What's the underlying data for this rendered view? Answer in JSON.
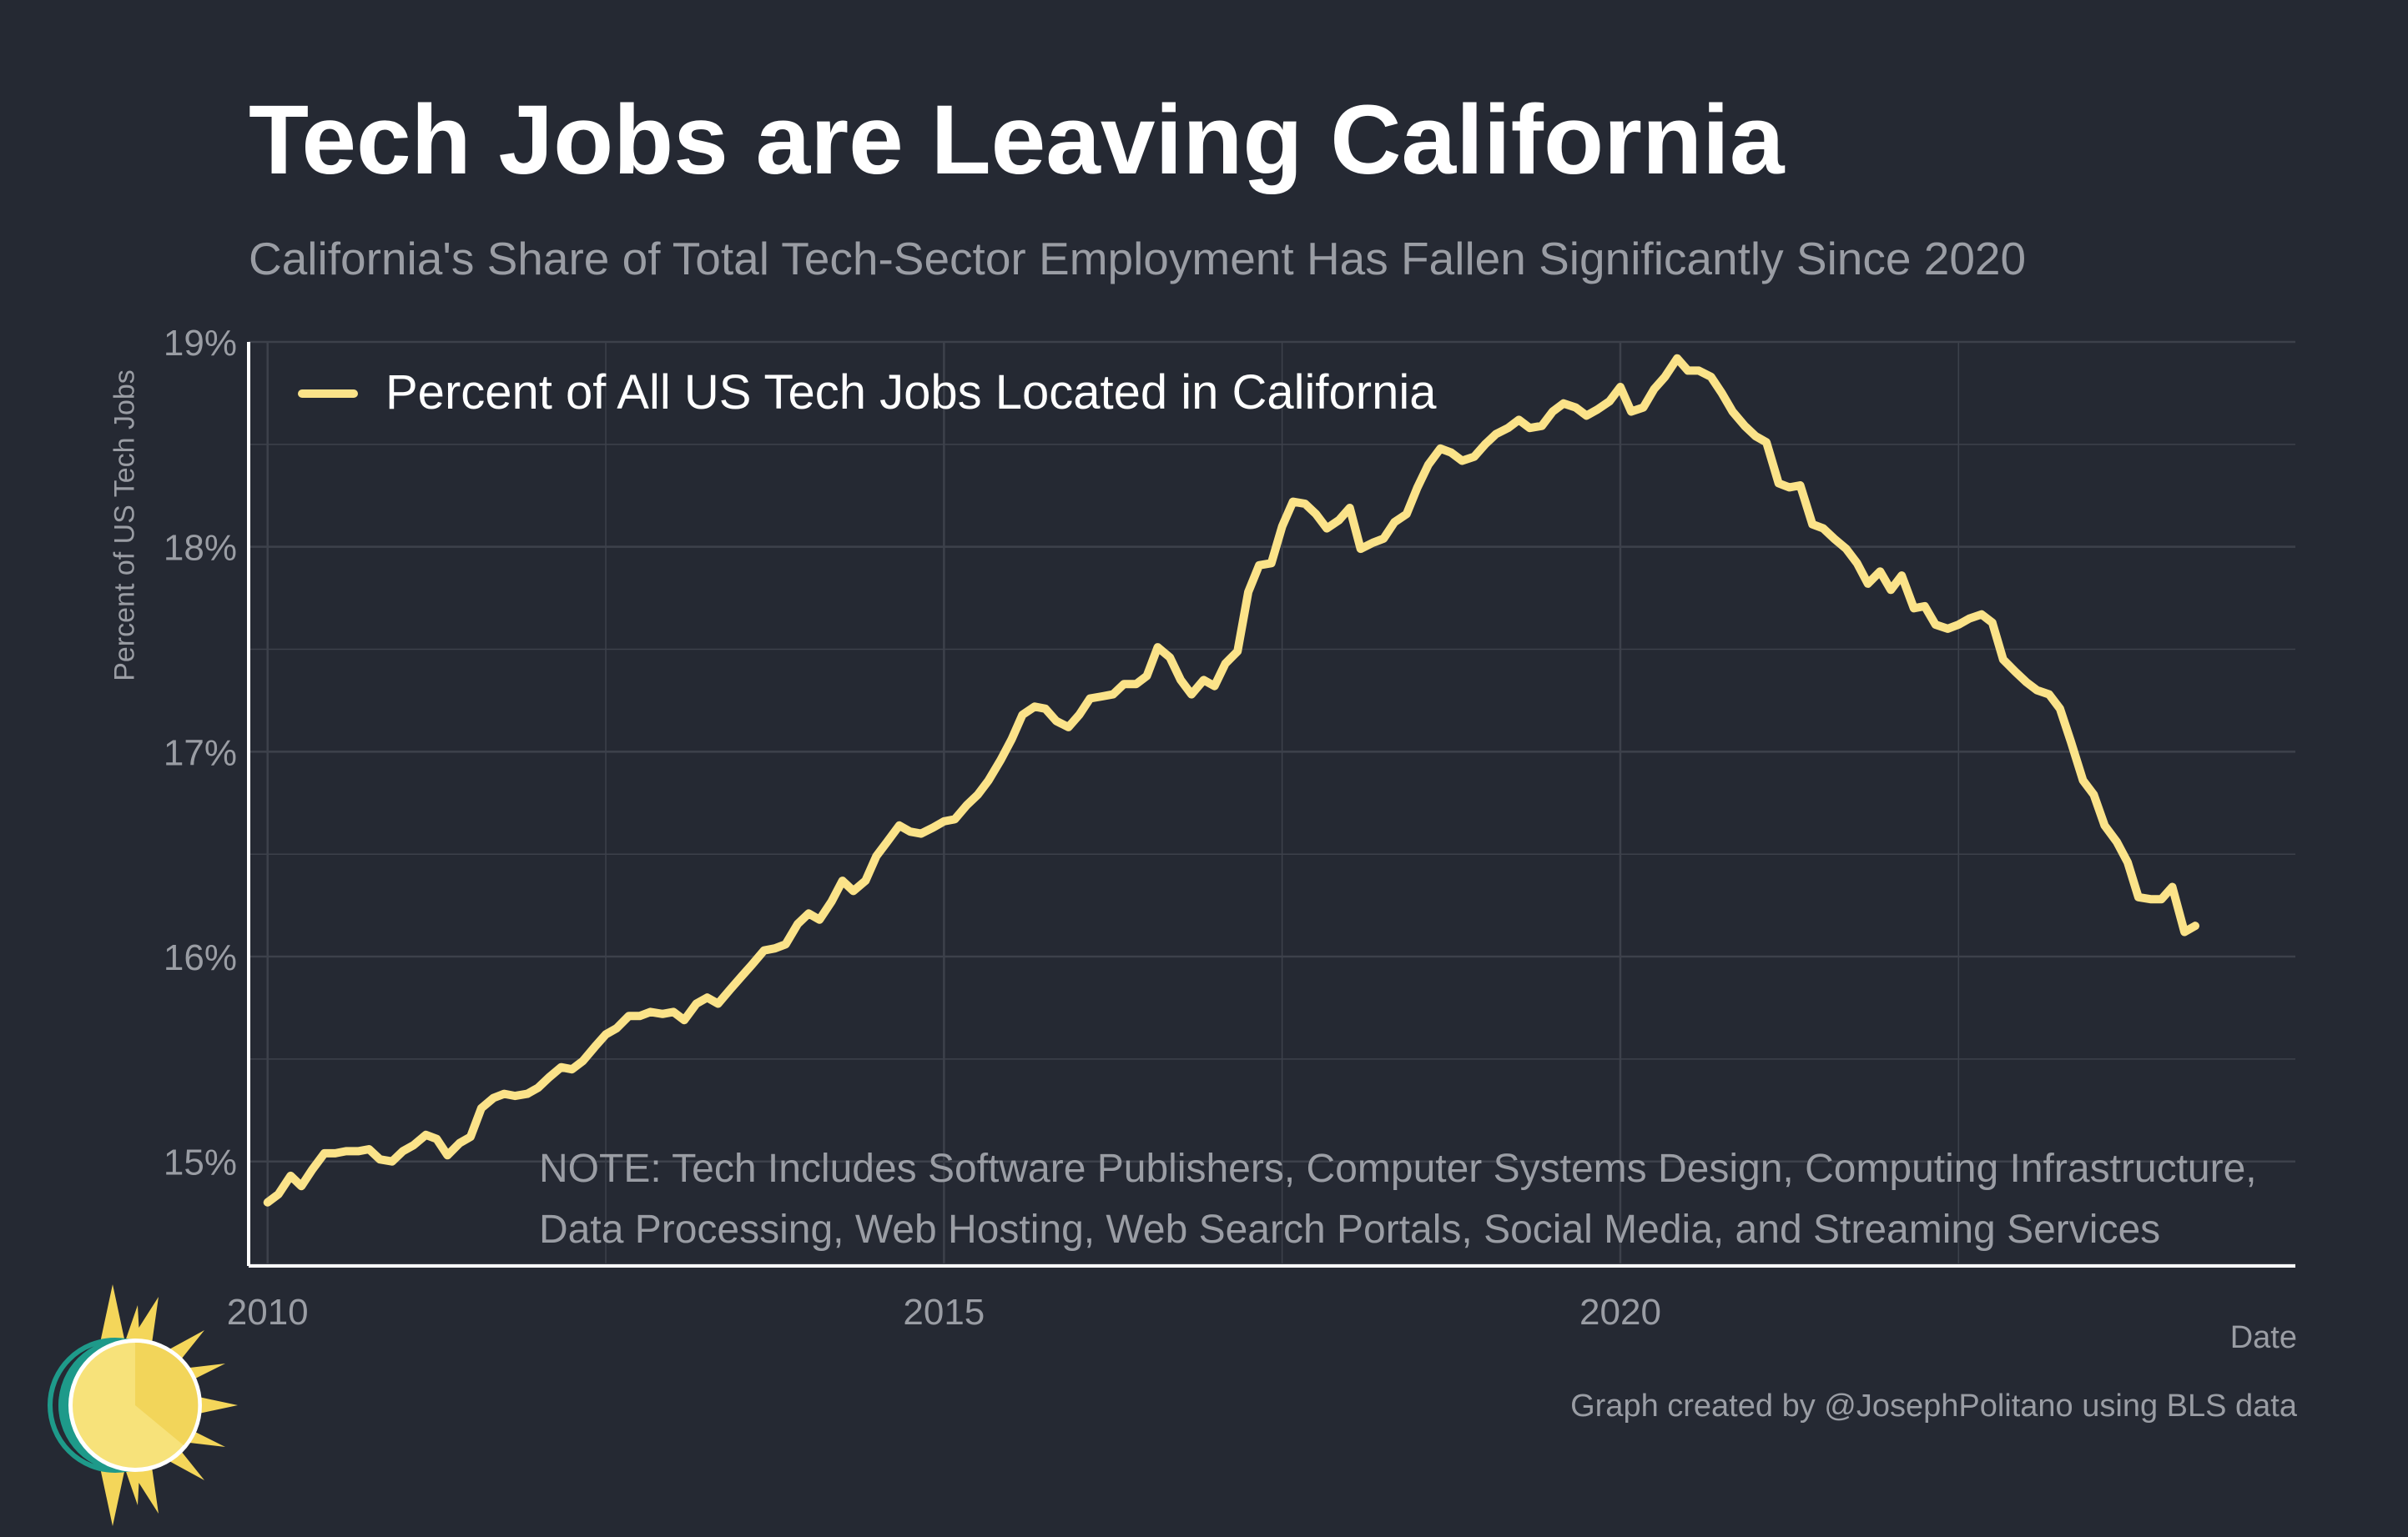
{
  "title": "Tech Jobs are Leaving California",
  "subtitle": "California's Share of Total Tech-Sector Employment Has Fallen Significantly Since 2020",
  "note": {
    "line1": "NOTE: Tech Includes Software Publishers, Computer Systems Design, Computing Infrastructure,",
    "line2": "Data Processing, Web Hosting, Web Search Portals, Social Media, and Streaming Services"
  },
  "caption": "Graph created by @JosephPolitano using BLS data",
  "colors": {
    "background": "#252933",
    "line": "#fbe389",
    "grid": "#3d414b",
    "text": "#9a9da4",
    "axis": "#ffffff"
  },
  "logo_icon": "sun-logo-icon",
  "chart_data": {
    "type": "line",
    "title": "Tech Jobs are Leaving California",
    "subtitle": "California's Share of Total Tech-Sector Employment Has Fallen Significantly Since 2020",
    "xlabel": "Date",
    "ylabel": "Percent of US Tech Jobs",
    "xlim": [
      2009.86,
      2024.99
    ],
    "ylim": [
      14.49,
      19.0
    ],
    "x_ticks": [
      2010,
      2015,
      2020
    ],
    "x_tick_labels": [
      "2010",
      "2015",
      "2020"
    ],
    "y_ticks": [
      15,
      16,
      17,
      18,
      19
    ],
    "y_tick_labels": [
      "15%",
      "16%",
      "17%",
      "18%",
      "19%"
    ],
    "grid": true,
    "legend_position": "top-left",
    "series": [
      {
        "name": "Percent of All US Tech Jobs Located in California",
        "x": [
          2010.0,
          2010.08,
          2010.17,
          2010.25,
          2010.33,
          2010.42,
          2010.5,
          2010.58,
          2010.67,
          2010.75,
          2010.83,
          2010.92,
          2011.0,
          2011.08,
          2011.17,
          2011.25,
          2011.33,
          2011.42,
          2011.5,
          2011.58,
          2011.67,
          2011.75,
          2011.83,
          2011.92,
          2012.0,
          2012.08,
          2012.17,
          2012.25,
          2012.33,
          2012.42,
          2012.5,
          2012.58,
          2012.67,
          2012.75,
          2012.83,
          2012.92,
          2013.0,
          2013.08,
          2013.17,
          2013.25,
          2013.33,
          2013.42,
          2013.5,
          2013.58,
          2013.67,
          2013.75,
          2013.83,
          2013.92,
          2014.0,
          2014.08,
          2014.17,
          2014.25,
          2014.33,
          2014.42,
          2014.5,
          2014.58,
          2014.67,
          2014.75,
          2014.83,
          2014.92,
          2015.0,
          2015.08,
          2015.17,
          2015.25,
          2015.33,
          2015.42,
          2015.5,
          2015.58,
          2015.67,
          2015.75,
          2015.83,
          2015.92,
          2016.0,
          2016.08,
          2016.17,
          2016.25,
          2016.33,
          2016.42,
          2016.5,
          2016.58,
          2016.67,
          2016.75,
          2016.83,
          2016.92,
          2017.0,
          2017.08,
          2017.17,
          2017.25,
          2017.33,
          2017.42,
          2017.5,
          2017.58,
          2017.67,
          2017.75,
          2017.83,
          2017.92,
          2018.0,
          2018.08,
          2018.17,
          2018.25,
          2018.33,
          2018.42,
          2018.5,
          2018.58,
          2018.67,
          2018.75,
          2018.83,
          2018.92,
          2019.0,
          2019.08,
          2019.17,
          2019.25,
          2019.33,
          2019.42,
          2019.5,
          2019.58,
          2019.67,
          2019.75,
          2019.83,
          2019.92,
          2020.0,
          2020.08,
          2020.17,
          2020.25,
          2020.33,
          2020.42,
          2020.5,
          2020.58,
          2020.67,
          2020.75,
          2020.83,
          2020.92,
          2021.0,
          2021.08,
          2021.17,
          2021.25,
          2021.33,
          2021.42,
          2021.5,
          2021.58,
          2021.67,
          2021.75,
          2021.83,
          2021.92,
          2022.0,
          2022.08,
          2022.17,
          2022.25,
          2022.33,
          2022.42,
          2022.5,
          2022.58,
          2022.67,
          2022.75,
          2022.83,
          2022.92,
          2023.0,
          2023.08,
          2023.17,
          2023.25,
          2023.33,
          2023.42,
          2023.5,
          2023.58,
          2023.67,
          2023.75,
          2023.83,
          2023.92,
          2024.0,
          2024.08,
          2024.17,
          2024.25
        ],
        "y": [
          14.8,
          14.84,
          14.93,
          14.88,
          14.96,
          15.04,
          15.04,
          15.05,
          15.05,
          15.06,
          15.01,
          15.0,
          15.05,
          15.08,
          15.13,
          15.11,
          15.03,
          15.09,
          15.12,
          15.26,
          15.31,
          15.33,
          15.32,
          15.33,
          15.36,
          15.41,
          15.46,
          15.45,
          15.49,
          15.56,
          15.62,
          15.65,
          15.71,
          15.71,
          15.73,
          15.72,
          15.73,
          15.69,
          15.77,
          15.8,
          15.77,
          15.84,
          15.9,
          15.96,
          16.03,
          16.04,
          16.06,
          16.16,
          16.21,
          16.18,
          16.27,
          16.37,
          16.32,
          16.37,
          16.49,
          16.56,
          16.64,
          16.61,
          16.6,
          16.63,
          16.66,
          16.67,
          16.74,
          16.79,
          16.86,
          16.96,
          17.06,
          17.18,
          17.22,
          17.21,
          17.15,
          17.12,
          17.18,
          17.26,
          17.27,
          17.28,
          17.33,
          17.33,
          17.37,
          17.51,
          17.46,
          17.35,
          17.28,
          17.35,
          17.32,
          17.43,
          17.49,
          17.78,
          17.91,
          17.92,
          18.1,
          18.22,
          18.21,
          18.16,
          18.09,
          18.13,
          18.19,
          17.99,
          18.02,
          18.04,
          18.12,
          18.16,
          18.29,
          18.4,
          18.48,
          18.46,
          18.42,
          18.44,
          18.5,
          18.55,
          18.58,
          18.62,
          18.58,
          18.59,
          18.66,
          18.7,
          18.68,
          18.64,
          18.67,
          18.71,
          18.78,
          18.66,
          18.68,
          18.77,
          18.83,
          18.92,
          18.86,
          18.86,
          18.83,
          18.75,
          18.66,
          18.59,
          18.54,
          18.51,
          18.31,
          18.29,
          18.3,
          18.11,
          18.09,
          18.04,
          17.99,
          17.92,
          17.82,
          17.88,
          17.79,
          17.86,
          17.7,
          17.71,
          17.62,
          17.6,
          17.62,
          17.65,
          17.67,
          17.63,
          17.45,
          17.39,
          17.34,
          17.3,
          17.28,
          17.21,
          17.05,
          16.86,
          16.79,
          16.64,
          16.56,
          16.46,
          16.29,
          16.28,
          16.28,
          16.34,
          16.12,
          16.15
        ]
      }
    ]
  }
}
